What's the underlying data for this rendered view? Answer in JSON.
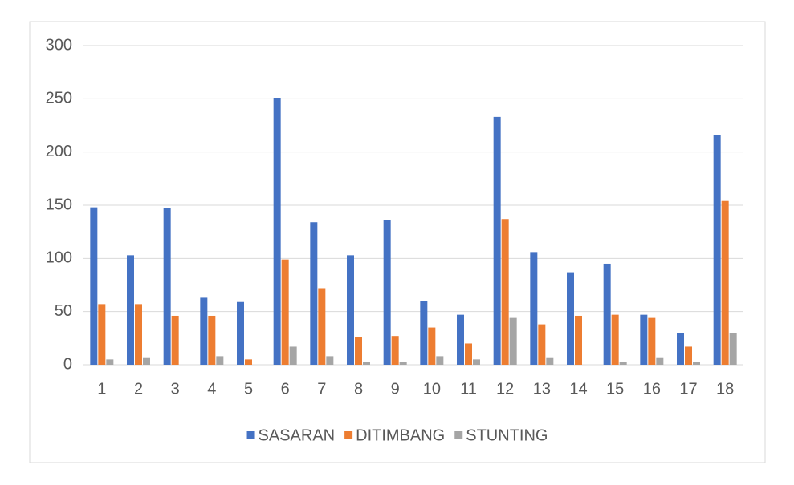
{
  "chart_data": {
    "type": "bar",
    "categories": [
      "1",
      "2",
      "3",
      "4",
      "5",
      "6",
      "7",
      "8",
      "9",
      "10",
      "11",
      "12",
      "13",
      "14",
      "15",
      "16",
      "17",
      "18"
    ],
    "series": [
      {
        "name": "SASARAN",
        "color": "#4472c4",
        "values": [
          148,
          103,
          147,
          63,
          59,
          251,
          134,
          103,
          136,
          60,
          47,
          233,
          106,
          87,
          95,
          47,
          30,
          216
        ]
      },
      {
        "name": "DITIMBANG",
        "color": "#ed7d31",
        "values": [
          57,
          57,
          46,
          46,
          5,
          99,
          72,
          26,
          27,
          35,
          20,
          137,
          38,
          46,
          47,
          44,
          17,
          154
        ]
      },
      {
        "name": "STUNTING",
        "color": "#a5a5a5",
        "values": [
          5,
          7,
          0,
          8,
          0,
          17,
          8,
          3,
          3,
          8,
          5,
          44,
          7,
          0,
          3,
          7,
          3,
          30
        ]
      }
    ],
    "ylim": [
      0,
      300
    ],
    "yticks": [
      0,
      50,
      100,
      150,
      200,
      250,
      300
    ],
    "grid": true,
    "legend": "bottom"
  }
}
